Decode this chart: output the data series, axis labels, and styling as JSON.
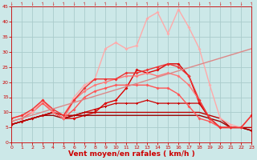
{
  "xlabel": "Vent moyen/en rafales ( km/h )",
  "xlim": [
    0,
    23
  ],
  "ylim": [
    0,
    45
  ],
  "yticks": [
    0,
    5,
    10,
    15,
    20,
    25,
    30,
    35,
    40,
    45
  ],
  "xticks": [
    0,
    1,
    2,
    3,
    4,
    5,
    6,
    7,
    8,
    9,
    10,
    11,
    12,
    13,
    14,
    15,
    16,
    17,
    18,
    19,
    20,
    21,
    22,
    23
  ],
  "background_color": "#cce8e8",
  "grid_color": "#aacccc",
  "lines": [
    {
      "x": [
        0,
        1,
        2,
        3,
        4,
        5,
        6,
        7,
        8,
        9,
        10,
        11,
        12,
        13,
        14,
        15,
        16,
        17,
        18,
        19,
        20,
        21,
        22,
        23
      ],
      "y": [
        6,
        7,
        8,
        9,
        10,
        8,
        8,
        9,
        10,
        13,
        14,
        18,
        24,
        23,
        24,
        26,
        26,
        22,
        13,
        8,
        5,
        5,
        5,
        4
      ],
      "color": "#dd0000",
      "lw": 1.0,
      "marker": "D",
      "ms": 2.0
    },
    {
      "x": [
        0,
        1,
        2,
        3,
        4,
        5,
        6,
        7,
        8,
        9,
        10,
        11,
        12,
        13,
        14,
        15,
        16,
        17,
        18,
        19,
        20,
        21,
        22,
        23
      ],
      "y": [
        6,
        7,
        8,
        9,
        10,
        8,
        9,
        10,
        11,
        12,
        13,
        13,
        13,
        14,
        13,
        13,
        13,
        13,
        13,
        8,
        5,
        5,
        5,
        4
      ],
      "color": "#cc0000",
      "lw": 0.9,
      "marker": "P",
      "ms": 2.2
    },
    {
      "x": [
        0,
        1,
        2,
        3,
        4,
        5,
        6,
        7,
        8,
        9,
        10,
        11,
        12,
        13,
        14,
        15,
        16,
        17,
        18,
        19,
        20,
        21,
        22,
        23
      ],
      "y": [
        6,
        7,
        8,
        9,
        9,
        8,
        9,
        9,
        9,
        9,
        9,
        9,
        9,
        9,
        9,
        9,
        9,
        9,
        9,
        8,
        7,
        5,
        5,
        4
      ],
      "color": "#990000",
      "lw": 1.0,
      "marker": null,
      "ms": 0
    },
    {
      "x": [
        0,
        1,
        2,
        3,
        4,
        5,
        6,
        7,
        8,
        9,
        10,
        11,
        12,
        13,
        14,
        15,
        16,
        17,
        18,
        19,
        20,
        21,
        22,
        23
      ],
      "y": [
        6,
        7,
        8,
        9,
        10,
        9,
        9,
        10,
        10,
        10,
        10,
        10,
        10,
        10,
        10,
        10,
        10,
        10,
        10,
        9,
        8,
        5,
        5,
        5
      ],
      "color": "#bb0000",
      "lw": 1.0,
      "marker": null,
      "ms": 0
    },
    {
      "x": [
        0,
        1,
        2,
        3,
        4,
        5,
        6,
        7,
        8,
        9,
        10,
        11,
        12,
        13,
        14,
        15,
        16,
        17,
        18,
        19,
        20,
        21,
        22,
        23
      ],
      "y": [
        7,
        8,
        10,
        13,
        10,
        8,
        11,
        15,
        17,
        18,
        19,
        19,
        19,
        19,
        18,
        18,
        16,
        12,
        8,
        7,
        5,
        5,
        5,
        9
      ],
      "color": "#ff5555",
      "lw": 1.0,
      "marker": "D",
      "ms": 2.0
    },
    {
      "x": [
        0,
        1,
        2,
        3,
        4,
        5,
        6,
        7,
        8,
        9,
        10,
        11,
        12,
        13,
        14,
        15,
        16,
        17,
        18,
        19,
        20,
        21,
        22,
        23
      ],
      "y": [
        8,
        9,
        10,
        14,
        10,
        8,
        14,
        17,
        19,
        20,
        21,
        22,
        22,
        23,
        22,
        23,
        22,
        19,
        14,
        8,
        5,
        5,
        5,
        9
      ],
      "color": "#ff7777",
      "lw": 1.0,
      "marker": "D",
      "ms": 2.0
    },
    {
      "x": [
        0,
        1,
        2,
        3,
        4,
        5,
        6,
        7,
        8,
        9,
        10,
        11,
        12,
        13,
        14,
        15,
        16,
        17,
        18,
        19,
        20,
        21,
        22,
        23
      ],
      "y": [
        8,
        9,
        10,
        14,
        11,
        9,
        15,
        19,
        21,
        31,
        33,
        31,
        32,
        41,
        43,
        36,
        44,
        38,
        31,
        19,
        8,
        6,
        5,
        9
      ],
      "color": "#ffaaaa",
      "lw": 1.0,
      "marker": "D",
      "ms": 2.0
    },
    {
      "x": [
        0,
        1,
        2,
        3,
        4,
        5,
        6,
        7,
        8,
        9,
        10,
        11,
        12,
        13,
        14,
        15,
        16,
        17,
        18,
        19,
        20,
        21,
        22,
        23
      ],
      "y": [
        8,
        9,
        11,
        14,
        11,
        9,
        14,
        18,
        21,
        21,
        21,
        23,
        23,
        24,
        25,
        26,
        25,
        22,
        14,
        8,
        5,
        5,
        5,
        9
      ],
      "color": "#ee3333",
      "lw": 1.0,
      "marker": "D",
      "ms": 2.0
    },
    {
      "x": [
        0,
        23
      ],
      "y": [
        7,
        31
      ],
      "color": "#dd8888",
      "lw": 1.0,
      "marker": null,
      "ms": 0,
      "linestyle": "-"
    }
  ]
}
